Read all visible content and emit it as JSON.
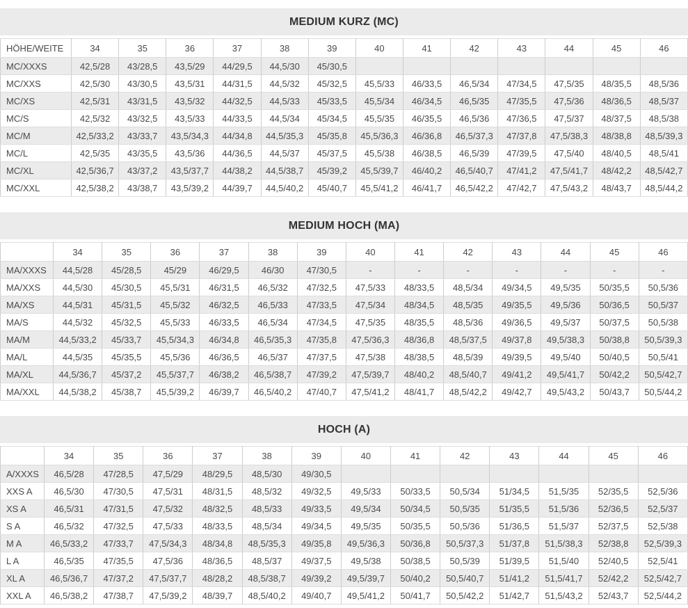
{
  "colors": {
    "title_band_bg": "#ebebeb",
    "stripe_row_bg": "#ebebeb",
    "cell_border_vertical": "#cccccc",
    "cell_border_horizontal": "#dddddd",
    "text": "#4a4a4a",
    "title_text": "#333333"
  },
  "tables": [
    {
      "id": "medium-kurz-mc",
      "title": "MEDIUM KURZ (MC)",
      "header": [
        "HÖHE/WEITE",
        "34",
        "35",
        "36",
        "37",
        "38",
        "39",
        "40",
        "41",
        "42",
        "43",
        "44",
        "45",
        "46"
      ],
      "rows": [
        {
          "label": "MC/XXXS",
          "cells": [
            "42,5/28",
            "43/28,5",
            "43,5/29",
            "44/29,5",
            "44,5/30",
            "45/30,5",
            "",
            "",
            "",
            "",
            "",
            "",
            ""
          ]
        },
        {
          "label": "MC/XXS",
          "cells": [
            "42,5/30",
            "43/30,5",
            "43,5/31",
            "44/31,5",
            "44,5/32",
            "45/32,5",
            "45,5/33",
            "46/33,5",
            "46,5/34",
            "47/34,5",
            "47,5/35",
            "48/35,5",
            "48,5/36"
          ]
        },
        {
          "label": "MC/XS",
          "cells": [
            "42,5/31",
            "43/31,5",
            "43,5/32",
            "44/32,5",
            "44,5/33",
            "45/33,5",
            "45,5/34",
            "46/34,5",
            "46,5/35",
            "47/35,5",
            "47,5/36",
            "48/36,5",
            "48,5/37"
          ]
        },
        {
          "label": "MC/S",
          "cells": [
            "42,5/32",
            "43/32,5",
            "43,5/33",
            "44/33,5",
            "44,5/34",
            "45/34,5",
            "45,5/35",
            "46/35,5",
            "46,5/36",
            "47/36,5",
            "47,5/37",
            "48/37,5",
            "48,5/38"
          ]
        },
        {
          "label": "MC/M",
          "cells": [
            "42,5/33,2",
            "43/33,7",
            "43,5/34,3",
            "44/34,8",
            "44,5/35,3",
            "45/35,8",
            "45,5/36,3",
            "46/36,8",
            "46,5/37,3",
            "47/37,8",
            "47,5/38,3",
            "48/38,8",
            "48,5/39,3"
          ]
        },
        {
          "label": "MC/L",
          "cells": [
            "42,5/35",
            "43/35,5",
            "43,5/36",
            "44/36,5",
            "44,5/37",
            "45/37,5",
            "45,5/38",
            "46/38,5",
            "46,5/39",
            "47/39,5",
            "47,5/40",
            "48/40,5",
            "48,5/41"
          ]
        },
        {
          "label": "MC/XL",
          "cells": [
            "42,5/36,7",
            "43/37,2",
            "43,5/37,7",
            "44/38,2",
            "44,5/38,7",
            "45/39,2",
            "45,5/39,7",
            "46/40,2",
            "46,5/40,7",
            "47/41,2",
            "47,5/41,7",
            "48/42,2",
            "48,5/42,7"
          ]
        },
        {
          "label": "MC/XXL",
          "cells": [
            "42,5/38,2",
            "43/38,7",
            "43,5/39,2",
            "44/39,7",
            "44,5/40,2",
            "45/40,7",
            "45,5/41,2",
            "46/41,7",
            "46,5/42,2",
            "47/42,7",
            "47,5/43,2",
            "48/43,7",
            "48,5/44,2"
          ]
        }
      ]
    },
    {
      "id": "medium-hoch-ma",
      "title": "MEDIUM HOCH (MA)",
      "header": [
        "",
        "34",
        "35",
        "36",
        "37",
        "38",
        "39",
        "40",
        "41",
        "42",
        "43",
        "44",
        "45",
        "46"
      ],
      "rows": [
        {
          "label": "MA/XXXS",
          "cells": [
            "44,5/28",
            "45/28,5",
            "45/29",
            "46/29,5",
            "46/30",
            "47/30,5",
            "-",
            "-",
            "-",
            "-",
            "-",
            "-",
            "-"
          ]
        },
        {
          "label": "MA/XXS",
          "cells": [
            "44,5/30",
            "45/30,5",
            "45,5/31",
            "46/31,5",
            "46,5/32",
            "47/32,5",
            "47,5/33",
            "48/33,5",
            "48,5/34",
            "49/34,5",
            "49,5/35",
            "50/35,5",
            "50,5/36"
          ]
        },
        {
          "label": "MA/XS",
          "cells": [
            "44,5/31",
            "45/31,5",
            "45,5/32",
            "46/32,5",
            "46,5/33",
            "47/33,5",
            "47,5/34",
            "48/34,5",
            "48,5/35",
            "49/35,5",
            "49,5/36",
            "50/36,5",
            "50,5/37"
          ]
        },
        {
          "label": "MA/S",
          "cells": [
            "44,5/32",
            "45/32,5",
            "45,5/33",
            "46/33,5",
            "46,5/34",
            "47/34,5",
            "47,5/35",
            "48/35,5",
            "48,5/36",
            "49/36,5",
            "49,5/37",
            "50/37,5",
            "50,5/38"
          ]
        },
        {
          "label": "MA/M",
          "cells": [
            "44,5/33,2",
            "45/33,7",
            "45,5/34,3",
            "46/34,8",
            "46,5/35,3",
            "47/35,8",
            "47,5/36,3",
            "48/36,8",
            "48,5/37,5",
            "49/37,8",
            "49,5/38,3",
            "50/38,8",
            "50,5/39,3"
          ]
        },
        {
          "label": "MA/L",
          "cells": [
            "44,5/35",
            "45/35,5",
            "45,5/36",
            "46/36,5",
            "46,5/37",
            "47/37,5",
            "47,5/38",
            "48/38,5",
            "48,5/39",
            "49/39,5",
            "49,5/40",
            "50/40,5",
            "50,5/41"
          ]
        },
        {
          "label": "MA/XL",
          "cells": [
            "44,5/36,7",
            "45/37,2",
            "45,5/37,7",
            "46/38,2",
            "46,5/38,7",
            "47/39,2",
            "47,5/39,7",
            "48/40,2",
            "48,5/40,7",
            "49/41,2",
            "49,5/41,7",
            "50/42,2",
            "50,5/42,7"
          ]
        },
        {
          "label": "MA/XXL",
          "cells": [
            "44,5/38,2",
            "45/38,7",
            "45,5/39,2",
            "46/39,7",
            "46,5/40,2",
            "47/40,7",
            "47,5/41,2",
            "48/41,7",
            "48,5/42,2",
            "49/42,7",
            "49,5/43,2",
            "50/43,7",
            "50,5/44,2"
          ]
        }
      ]
    },
    {
      "id": "hoch-a",
      "title": "HOCH (A)",
      "header": [
        "",
        "34",
        "35",
        "36",
        "37",
        "38",
        "39",
        "40",
        "41",
        "42",
        "43",
        "44",
        "45",
        "46"
      ],
      "rows": [
        {
          "label": "A/XXXS",
          "cells": [
            "46,5/28",
            "47/28,5",
            "47,5/29",
            "48/29,5",
            "48,5/30",
            "49/30,5",
            "",
            "",
            "",
            "",
            "",
            "",
            ""
          ]
        },
        {
          "label": "XXS A",
          "cells": [
            "46,5/30",
            "47/30,5",
            "47,5/31",
            "48/31,5",
            "48,5/32",
            "49/32,5",
            "49,5/33",
            "50/33,5",
            "50,5/34",
            "51/34,5",
            "51,5/35",
            "52/35,5",
            "52,5/36"
          ]
        },
        {
          "label": "XS A",
          "cells": [
            "46,5/31",
            "47/31,5",
            "47,5/32",
            "48/32,5",
            "48,5/33",
            "49/33,5",
            "49,5/34",
            "50/34,5",
            "50,5/35",
            "51/35,5",
            "51,5/36",
            "52/36,5",
            "52,5/37"
          ]
        },
        {
          "label": "S A",
          "cells": [
            "46,5/32",
            "47/32,5",
            "47,5/33",
            "48/33,5",
            "48,5/34",
            "49/34,5",
            "49,5/35",
            "50/35,5",
            "50,5/36",
            "51/36,5",
            "51,5/37",
            "52/37,5",
            "52,5/38"
          ]
        },
        {
          "label": "M A",
          "cells": [
            "46,5/33,2",
            "47/33,7",
            "47,5/34,3",
            "48/34,8",
            "48,5/35,3",
            "49/35,8",
            "49,5/36,3",
            "50/36,8",
            "50,5/37,3",
            "51/37,8",
            "51,5/38,3",
            "52/38,8",
            "52,5/39,3"
          ]
        },
        {
          "label": "L A",
          "cells": [
            "46,5/35",
            "47/35,5",
            "47,5/36",
            "48/36,5",
            "48,5/37",
            "49/37,5",
            "49,5/38",
            "50/38,5",
            "50,5/39",
            "51/39,5",
            "51,5/40",
            "52/40,5",
            "52,5/41"
          ]
        },
        {
          "label": "XL A",
          "cells": [
            "46,5/36,7",
            "47/37,2",
            "47,5/37,7",
            "48/28,2",
            "48,5/38,7",
            "49/39,2",
            "49,5/39,7",
            "50/40,2",
            "50,5/40,7",
            "51/41,2",
            "51,5/41,7",
            "52/42,2",
            "52,5/42,7"
          ]
        },
        {
          "label": "XXL A",
          "cells": [
            "46,5/38,2",
            "47/38,7",
            "47,5/39,2",
            "48/39,7",
            "48,5/40,2",
            "49/40,7",
            "49,5/41,2",
            "50/41,7",
            "50,5/42,2",
            "51/42,7",
            "51,5/43,2",
            "52/43,7",
            "52,5/44,2"
          ]
        }
      ]
    }
  ]
}
